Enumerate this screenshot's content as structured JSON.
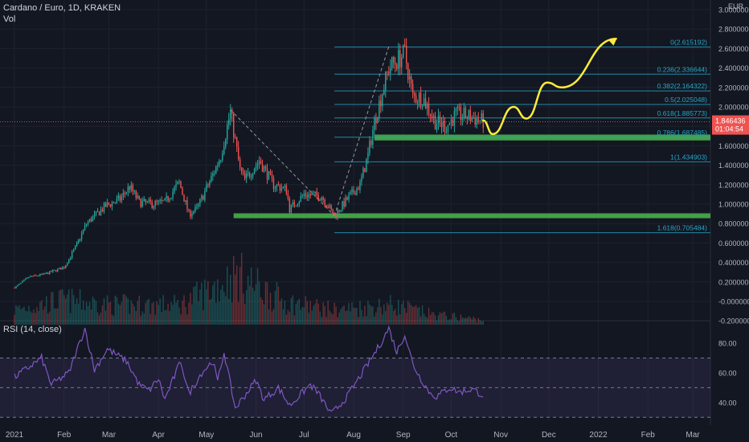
{
  "header": {
    "symbol_line": "Cardano / Euro, 1D, KRAKEN",
    "volume_label": "Vol",
    "currency": "EUR"
  },
  "rsi_panel": {
    "label": "RSI (14, close)",
    "ticks": [
      "80.00",
      "60.00",
      "40.00"
    ],
    "tick_values": [
      80,
      60,
      40
    ],
    "ylim": [
      28,
      93
    ],
    "upper_band": 70,
    "mid_band": 50,
    "lower_band": 30
  },
  "price_badge": {
    "price": "1.846436",
    "countdown": "01:04:54",
    "value": 1.846436
  },
  "colors": {
    "background": "#131722",
    "up": "#26a69a",
    "down": "#ef5350",
    "support_zone": "#43a047",
    "projection": "#ffeb3b",
    "fib_line": "#26a6c6",
    "rsi_line": "#7e57c2",
    "text": "#b2b5be"
  },
  "chart_data": {
    "type": "line",
    "title": "Cardano / Euro, 1D, KRAKEN",
    "ylabel": "EUR",
    "ylim": [
      -0.24,
      3.0
    ],
    "y_ticks": [
      "3.000000",
      "2.800000",
      "2.600000",
      "2.400000",
      "2.200000",
      "2.000000",
      "1.800000",
      "1.600000",
      "1.400000",
      "1.200000",
      "1.000000",
      "0.800000",
      "0.600000",
      "0.400000",
      "0.200000",
      "-0.000000",
      "-0.200000"
    ],
    "y_tick_values": [
      3.0,
      2.8,
      2.6,
      2.4,
      2.2,
      2.0,
      1.8,
      1.6,
      1.4,
      1.2,
      1.0,
      0.8,
      0.6,
      0.4,
      0.2,
      0.0,
      -0.2
    ],
    "x_ticks": [
      "2021",
      "Feb",
      "Mar",
      "Apr",
      "May",
      "Jun",
      "Jul",
      "Aug",
      "Sep",
      "Oct",
      "Nov",
      "Dec",
      "2022",
      "Feb",
      "Mar"
    ],
    "x_tick_dates": [
      "2021-01-01",
      "2021-02-01",
      "2021-03-01",
      "2021-04-01",
      "2021-05-01",
      "2021-06-01",
      "2021-07-01",
      "2021-08-01",
      "2021-09-01",
      "2021-10-01",
      "2021-11-01",
      "2021-12-01",
      "2022-01-01",
      "2022-02-01",
      "2022-03-01"
    ],
    "price_path": [
      {
        "date": "2021-01-01",
        "price": 0.14
      },
      {
        "date": "2021-01-10",
        "price": 0.25
      },
      {
        "date": "2021-01-20",
        "price": 0.28
      },
      {
        "date": "2021-02-01",
        "price": 0.35
      },
      {
        "date": "2021-02-08",
        "price": 0.55
      },
      {
        "date": "2021-02-15",
        "price": 0.8
      },
      {
        "date": "2021-02-27",
        "price": 0.98
      },
      {
        "date": "2021-03-08",
        "price": 1.05
      },
      {
        "date": "2021-03-14",
        "price": 1.18
      },
      {
        "date": "2021-03-20",
        "price": 1.02
      },
      {
        "date": "2021-03-28",
        "price": 1.0
      },
      {
        "date": "2021-04-05",
        "price": 1.02
      },
      {
        "date": "2021-04-14",
        "price": 1.22
      },
      {
        "date": "2021-04-20",
        "price": 0.9
      },
      {
        "date": "2021-04-25",
        "price": 0.95
      },
      {
        "date": "2021-05-05",
        "price": 1.3
      },
      {
        "date": "2021-05-10",
        "price": 1.5
      },
      {
        "date": "2021-05-16",
        "price": 1.95
      },
      {
        "date": "2021-05-22",
        "price": 1.35
      },
      {
        "date": "2021-05-25",
        "price": 1.25
      },
      {
        "date": "2021-06-03",
        "price": 1.45
      },
      {
        "date": "2021-06-12",
        "price": 1.2
      },
      {
        "date": "2021-06-20",
        "price": 1.15
      },
      {
        "date": "2021-06-22",
        "price": 0.95
      },
      {
        "date": "2021-07-01",
        "price": 1.1
      },
      {
        "date": "2021-07-12",
        "price": 1.08
      },
      {
        "date": "2021-07-20",
        "price": 0.88
      },
      {
        "date": "2021-07-28",
        "price": 1.05
      },
      {
        "date": "2021-08-05",
        "price": 1.2
      },
      {
        "date": "2021-08-10",
        "price": 1.5
      },
      {
        "date": "2021-08-14",
        "price": 1.85
      },
      {
        "date": "2021-08-23",
        "price": 2.4
      },
      {
        "date": "2021-09-02",
        "price": 2.55
      },
      {
        "date": "2021-09-07",
        "price": 2.1
      },
      {
        "date": "2021-09-13",
        "price": 2.1
      },
      {
        "date": "2021-09-21",
        "price": 1.85
      },
      {
        "date": "2021-09-28",
        "price": 1.8
      },
      {
        "date": "2021-10-04",
        "price": 1.92
      },
      {
        "date": "2021-10-12",
        "price": 1.9
      },
      {
        "date": "2021-10-21",
        "price": 1.85
      }
    ],
    "volume_path": [
      {
        "date": "2021-01-01",
        "volume": 0.3
      },
      {
        "date": "2021-02-01",
        "volume": 0.5
      },
      {
        "date": "2021-03-01",
        "volume": 0.4
      },
      {
        "date": "2021-04-15",
        "volume": 0.4
      },
      {
        "date": "2021-05-20",
        "volume": 1.0
      },
      {
        "date": "2021-06-20",
        "volume": 0.45
      },
      {
        "date": "2021-07-20",
        "volume": 0.3
      },
      {
        "date": "2021-08-25",
        "volume": 0.4
      },
      {
        "date": "2021-09-20",
        "volume": 0.2
      },
      {
        "date": "2021-10-21",
        "volume": 0.1
      }
    ],
    "rsi_path": [
      {
        "date": "2021-01-01",
        "rsi": 57
      },
      {
        "date": "2021-01-18",
        "rsi": 70
      },
      {
        "date": "2021-01-24",
        "rsi": 52
      },
      {
        "date": "2021-02-04",
        "rsi": 60
      },
      {
        "date": "2021-02-14",
        "rsi": 90
      },
      {
        "date": "2021-02-20",
        "rsi": 62
      },
      {
        "date": "2021-02-28",
        "rsi": 76
      },
      {
        "date": "2021-03-12",
        "rsi": 68
      },
      {
        "date": "2021-03-20",
        "rsi": 52
      },
      {
        "date": "2021-03-26",
        "rsi": 48
      },
      {
        "date": "2021-04-01",
        "rsi": 56
      },
      {
        "date": "2021-04-05",
        "rsi": 42
      },
      {
        "date": "2021-04-15",
        "rsi": 68
      },
      {
        "date": "2021-04-20",
        "rsi": 46
      },
      {
        "date": "2021-04-28",
        "rsi": 60
      },
      {
        "date": "2021-05-05",
        "rsi": 68
      },
      {
        "date": "2021-05-08",
        "rsi": 54
      },
      {
        "date": "2021-05-12",
        "rsi": 74
      },
      {
        "date": "2021-05-19",
        "rsi": 36
      },
      {
        "date": "2021-06-01",
        "rsi": 55
      },
      {
        "date": "2021-06-06",
        "rsi": 42
      },
      {
        "date": "2021-06-15",
        "rsi": 50
      },
      {
        "date": "2021-06-22",
        "rsi": 38
      },
      {
        "date": "2021-07-05",
        "rsi": 52
      },
      {
        "date": "2021-07-10",
        "rsi": 46
      },
      {
        "date": "2021-07-18",
        "rsi": 32
      },
      {
        "date": "2021-07-28",
        "rsi": 44
      },
      {
        "date": "2021-08-10",
        "rsi": 66
      },
      {
        "date": "2021-08-18",
        "rsi": 80
      },
      {
        "date": "2021-08-23",
        "rsi": 90
      },
      {
        "date": "2021-08-28",
        "rsi": 74
      },
      {
        "date": "2021-09-02",
        "rsi": 86
      },
      {
        "date": "2021-09-07",
        "rsi": 66
      },
      {
        "date": "2021-09-12",
        "rsi": 56
      },
      {
        "date": "2021-09-18",
        "rsi": 46
      },
      {
        "date": "2021-09-22",
        "rsi": 44
      },
      {
        "date": "2021-09-30",
        "rsi": 50
      },
      {
        "date": "2021-10-06",
        "rsi": 47
      },
      {
        "date": "2021-10-14",
        "rsi": 49
      },
      {
        "date": "2021-10-21",
        "rsi": 45
      }
    ],
    "fibonacci_levels": [
      {
        "label": "0(2.615192)",
        "value": 2.615192
      },
      {
        "label": "0.236(2.336644)",
        "value": 2.336644
      },
      {
        "label": "0.382(2.164322)",
        "value": 2.164322
      },
      {
        "label": "0.5(2.025048)",
        "value": 2.025048
      },
      {
        "label": "0.618(1.885773)",
        "value": 1.885773
      },
      {
        "label": "0.786(1.687485)",
        "value": 1.687485
      },
      {
        "label": "1(1.434903)",
        "value": 1.434903
      },
      {
        "label": "1.618(0.705484)",
        "value": 0.705484
      }
    ],
    "support_zones": [
      {
        "from": "2021-05-18",
        "to": "2022-03-31",
        "low": 0.855,
        "high": 0.905
      },
      {
        "from": "2021-08-14",
        "to": "2022-03-31",
        "low": 1.655,
        "high": 1.715
      }
    ],
    "projection_path": [
      {
        "date": "2021-10-21",
        "price": 1.86
      },
      {
        "date": "2021-10-27",
        "price": 1.72
      },
      {
        "date": "2021-11-09",
        "price": 2.0
      },
      {
        "date": "2021-11-17",
        "price": 1.88
      },
      {
        "date": "2021-11-30",
        "price": 2.25
      },
      {
        "date": "2021-12-09",
        "price": 2.2
      },
      {
        "date": "2022-01-12",
        "price": 2.7
      }
    ],
    "trendlines": [
      {
        "from": {
          "date": "2021-05-16",
          "price": 1.97
        },
        "to": {
          "date": "2021-07-20",
          "price": 0.88
        }
      },
      {
        "from": {
          "date": "2021-07-20",
          "price": 0.88
        },
        "to": {
          "date": "2021-08-23",
          "price": 2.62
        }
      }
    ]
  }
}
